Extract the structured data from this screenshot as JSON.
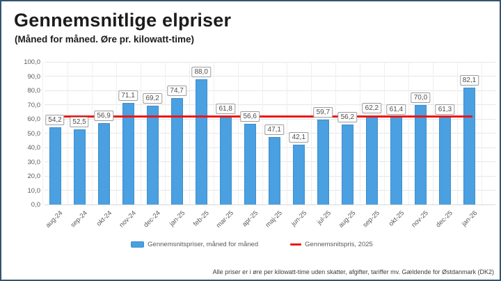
{
  "page": {
    "title": "Gennemsnitlige elpriser",
    "subtitle": "(Måned for måned. Øre pr. kilowatt-time)",
    "footnote": "Alle priser er i øre per kilowatt-time uden skatter, afgifter, tariffer mv. Gældende for Østdanmark (DK2)"
  },
  "legend": {
    "bars_label": "Gennemsnitspriser, måned for måned",
    "line_label": "Gennemsnitspris, 2025"
  },
  "colors": {
    "bar_fill": "#4aa0e0",
    "bar_border": "#3e8ecc",
    "reference_line_red": "#ed1515",
    "page_border": "#34536f",
    "grid": "#e6e6e6",
    "axis_text": "#595959"
  },
  "chart_data": {
    "type": "bar",
    "title": "Gennemsnitlige elpriser",
    "subtitle": "(Måned for måned. Øre pr. kilowatt-time)",
    "categories": [
      "aug-24",
      "sep-24",
      "okt-24",
      "nov-24",
      "dec-24",
      "jan-25",
      "feb-25",
      "mar-25",
      "apr-25",
      "maj-25",
      "jun-25",
      "jul-25",
      "aug-25",
      "sep-25",
      "okt-25",
      "nov-25",
      "dec-25",
      "jan-26"
    ],
    "values": [
      54.2,
      52.5,
      56.9,
      71.1,
      69.2,
      74.7,
      88.0,
      61.8,
      56.6,
      47.1,
      42.1,
      59.7,
      56.2,
      62.2,
      61.4,
      70.0,
      61.3,
      82.1
    ],
    "value_labels": [
      "54,2",
      "52,5",
      "56,9",
      "71,1",
      "69,2",
      "74,7",
      "88,0",
      "61,8",
      "56,6",
      "47,1",
      "42,1",
      "59,7",
      "56,2",
      "62,2",
      "61,4",
      "70,0",
      "61,3",
      "82,1"
    ],
    "series_name": "Gennemsnitspriser, måned for måned",
    "ylim": [
      0,
      100
    ],
    "y_tick_step": 10,
    "grid": true,
    "legend_position": "bottom",
    "reference_line": {
      "value": 61.8,
      "label": "Gennemsnitspris, 2025"
    }
  }
}
